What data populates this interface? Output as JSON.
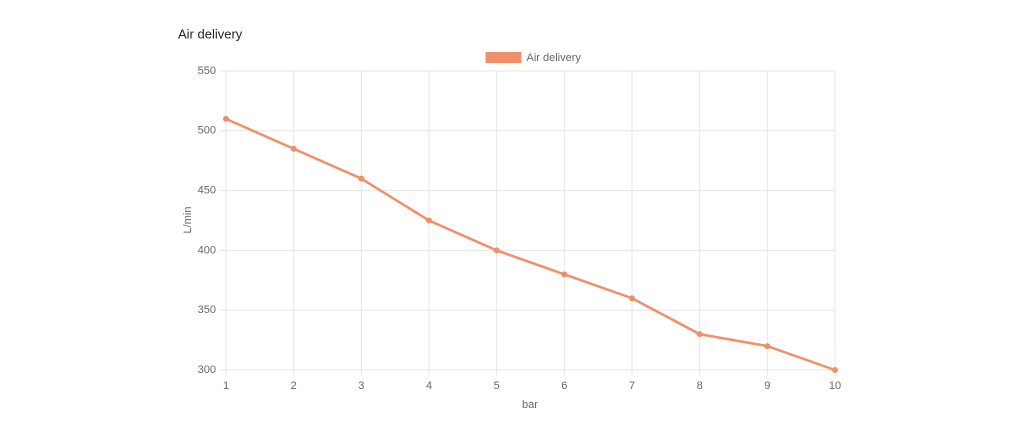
{
  "chart_data": {
    "type": "line",
    "title": "Air delivery",
    "x_label": "bar",
    "y_label": "L/min",
    "x": [
      1,
      2,
      3,
      4,
      5,
      6,
      7,
      8,
      9,
      10
    ],
    "series": [
      {
        "name": "Air delivery",
        "color": "#f0906a",
        "values": [
          510,
          485,
          460,
          425,
          400,
          380,
          360,
          330,
          320,
          300
        ]
      }
    ],
    "xlim": [
      1,
      10
    ],
    "xticks": [
      1,
      2,
      3,
      4,
      5,
      6,
      7,
      8,
      9,
      10
    ],
    "ylim": [
      300,
      550
    ],
    "yticks": [
      300,
      350,
      400,
      450,
      500,
      550
    ],
    "grid": true,
    "legend": "top"
  }
}
